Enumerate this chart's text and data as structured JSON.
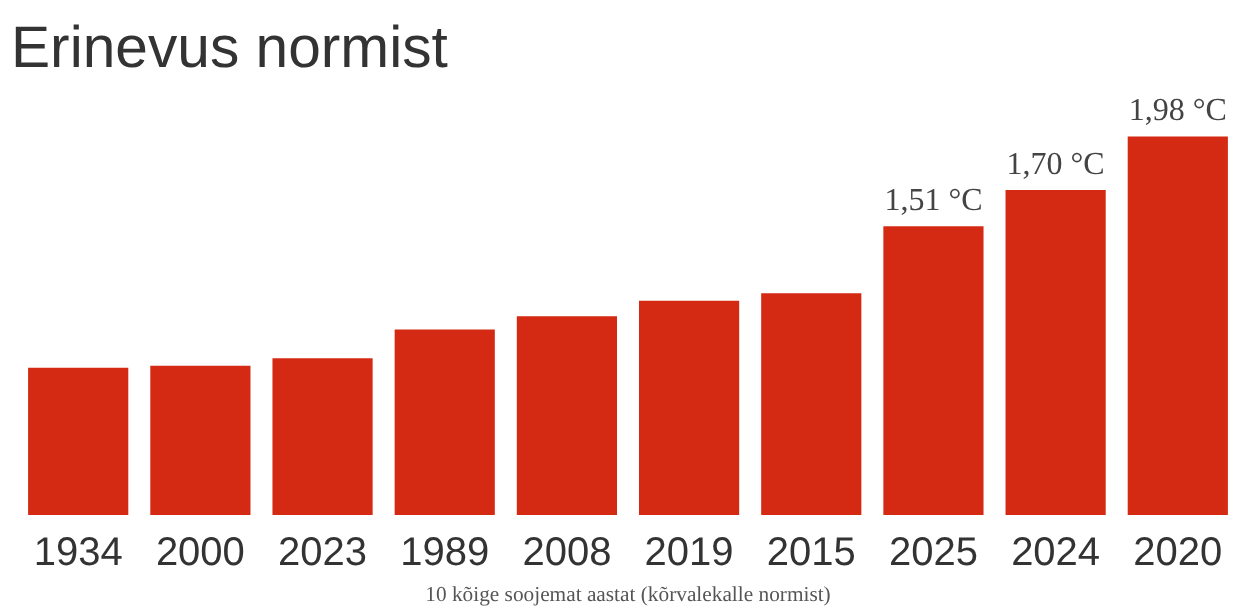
{
  "chart_data": {
    "type": "bar",
    "title": "Erinevus normist",
    "categories": [
      "1934",
      "2000",
      "2023",
      "1989",
      "2008",
      "2019",
      "2015",
      "2025",
      "2024",
      "2020"
    ],
    "values": [
      0.77,
      0.78,
      0.82,
      0.97,
      1.04,
      1.12,
      1.16,
      1.51,
      1.7,
      1.98
    ],
    "value_labels": [
      null,
      null,
      null,
      null,
      null,
      null,
      null,
      "1,51 °C",
      "1,70 °C",
      "1,98 °C"
    ],
    "color": "#d42a14",
    "annotations": [
      "10 kõige soojemat aastat (kõrvalekalle normist)"
    ]
  }
}
